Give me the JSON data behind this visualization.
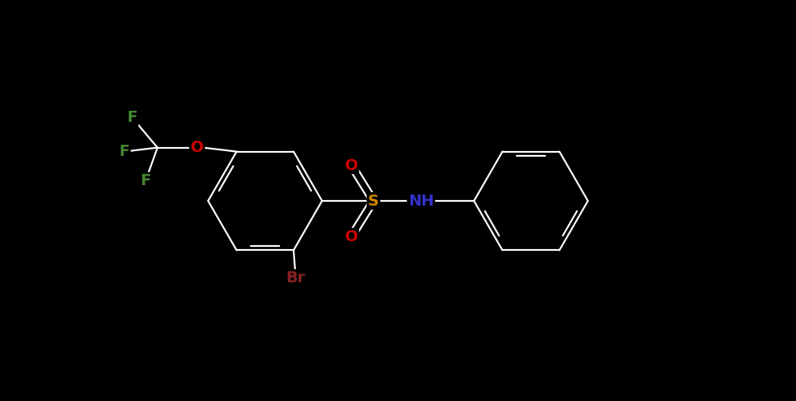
{
  "background_color": "#000000",
  "atom_colors": {
    "C": "#ffffff",
    "H": "#ffffff",
    "O": "#cc0000",
    "S": "#cc8800",
    "N": "#3333cc",
    "F": "#448833",
    "Br": "#882222"
  },
  "bond_color": "#ffffff",
  "figsize": [
    10.06,
    5.07
  ],
  "dpi": 100,
  "lw": 1.6,
  "font_size": 14,
  "ring_r": 0.72,
  "scale": 1.0
}
